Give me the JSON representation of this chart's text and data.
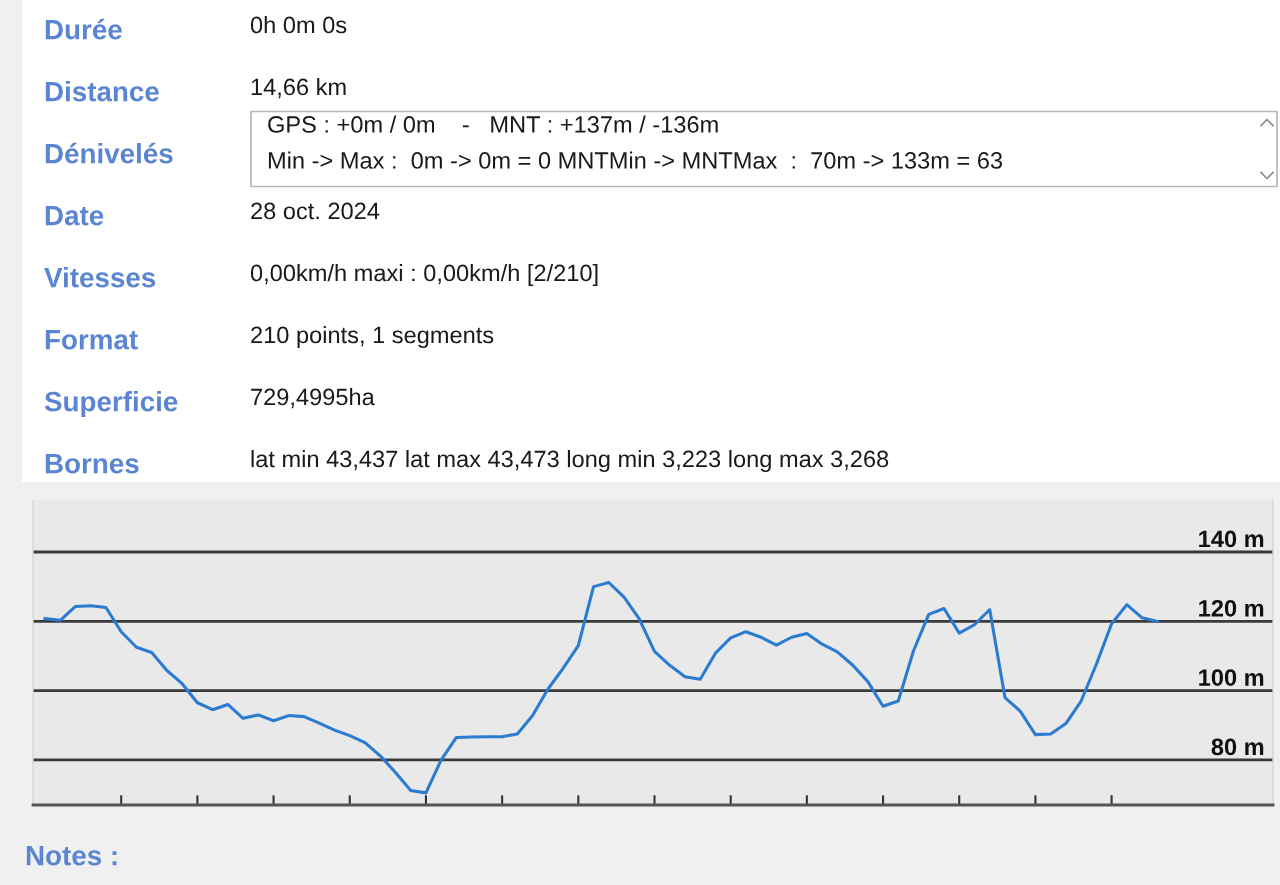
{
  "chart_data": [
    {
      "type": "other",
      "categories": [
        "Durée",
        "Distance",
        "Dénivelés",
        "Date",
        "Vitesses",
        "Format",
        "Superficie",
        "Bornes"
      ],
      "annotations": [
        "0h 0m 0s",
        "14,66 km",
        "GPS : +0m / 0m    -   MNT : +137m / -136m\nMin -> Max :  0m -> 0m = 0 MNTMin -> MNTMax  :  70m -> 133m = 63",
        "28 oct. 2024",
        "0,00km/h maxi : 0,00km/h [2/210]",
        "210 points, 1 segments",
        "729,4995ha",
        "lat min 43,437 lat max 43,473 long min 3,223 long max 3,268"
      ]
    },
    {
      "type": "line",
      "categories": [
        null,
        null,
        null,
        null,
        null,
        null,
        null,
        null,
        null,
        null,
        null,
        null,
        null,
        null,
        null,
        null,
        null,
        null,
        null,
        null,
        null,
        null,
        null,
        null,
        null,
        null,
        null,
        null,
        null,
        null,
        null,
        null,
        null,
        null,
        null,
        null,
        null,
        null,
        null,
        null,
        null,
        null,
        null,
        null,
        null,
        null,
        null,
        null,
        null,
        null,
        null,
        null,
        null,
        null,
        null,
        null,
        null,
        null,
        null,
        null,
        null,
        null,
        null,
        null,
        null,
        null,
        null,
        null,
        null,
        null,
        null,
        null,
        null,
        null
      ],
      "values": [
        120.8,
        120.3,
        124.3,
        124.5,
        124,
        117,
        112.5,
        111,
        105.8,
        102,
        96.5,
        94.5,
        96,
        92,
        93,
        91.3,
        92.8,
        92.5,
        90.6,
        88.6,
        87,
        85,
        81.2,
        76.4,
        71.2,
        70.5,
        80,
        86.5,
        86.6,
        86.7,
        86.7,
        87.5,
        92.8,
        100.4,
        106.4,
        113,
        130,
        131.2,
        127,
        120.7,
        111.3,
        107.3,
        104,
        103.3,
        110.8,
        115.2,
        117,
        115.4,
        113.1,
        115.4,
        116.5,
        113.4,
        111.2,
        107.4,
        102.6,
        95.5,
        97,
        111.5,
        122,
        123.7,
        116.6,
        119,
        123.4,
        98,
        94.1,
        87.3,
        87.5,
        90.5,
        97,
        107.6,
        119.3,
        124.8,
        121,
        120
      ],
      "color": "#2b7bd0",
      "ylim": [
        67,
        155
      ],
      "yticks": [
        {
          "value": 80,
          "label": "80 m"
        },
        {
          "value": 100,
          "label": "100 m"
        },
        {
          "value": 120,
          "label": "120 m"
        },
        {
          "value": 140,
          "label": "140 m"
        }
      ],
      "grid": "y",
      "tick_labels": "y",
      "annotations": [
        "Notes :"
      ]
    }
  ]
}
